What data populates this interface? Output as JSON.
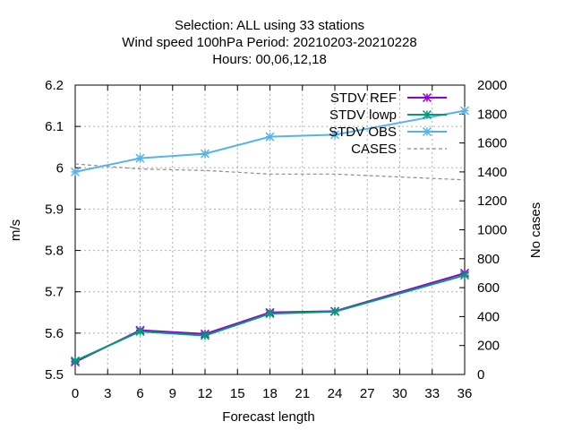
{
  "chart_data": {
    "type": "line",
    "title_lines": [
      "Selection: ALL using    33 stations",
      "Wind speed 100hPa   Period: 20210203-20210228",
      "Hours:  00,06,12,18"
    ],
    "xlabel": "Forecast length",
    "ylabel": "m/s",
    "y2label": "No cases",
    "x": [
      0,
      6,
      12,
      18,
      24,
      36
    ],
    "xticks": [
      0,
      3,
      6,
      9,
      12,
      15,
      18,
      21,
      24,
      27,
      30,
      33,
      36
    ],
    "xlim": [
      0,
      36
    ],
    "ylim": [
      5.5,
      6.2
    ],
    "yticks": [
      5.5,
      5.6,
      5.7,
      5.8,
      5.9,
      6,
      6.1,
      6.2
    ],
    "y2lim": [
      0,
      2000
    ],
    "y2ticks": [
      0,
      200,
      400,
      600,
      800,
      1000,
      1200,
      1400,
      1600,
      1800,
      2000
    ],
    "grid": true,
    "legend_position": "top-right",
    "series": [
      {
        "name": "STDV REF",
        "axis": "y",
        "color": "#9400d3",
        "style": "solid-marker",
        "values": [
          5.53,
          5.607,
          5.598,
          5.65,
          5.653,
          5.745
        ]
      },
      {
        "name": "STDV lowp",
        "axis": "y",
        "color": "#009e73",
        "style": "solid-marker",
        "values": [
          5.533,
          5.604,
          5.594,
          5.647,
          5.652,
          5.74
        ]
      },
      {
        "name": "STDV OBS",
        "axis": "y",
        "color": "#56b4e9",
        "style": "solid-marker",
        "values": [
          5.99,
          6.023,
          6.034,
          6.075,
          6.08,
          6.138
        ]
      },
      {
        "name": "CASES",
        "axis": "y2",
        "color": "#8c8c8c",
        "style": "dashed",
        "values": [
          1455,
          1420,
          1410,
          1385,
          1385,
          1345
        ]
      }
    ]
  }
}
